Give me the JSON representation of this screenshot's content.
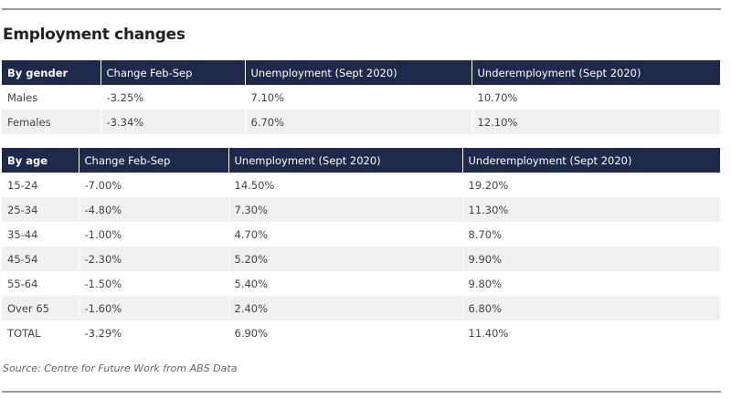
{
  "title": "Employment changes",
  "gender_table": {
    "headers": [
      "By gender",
      "Change Feb-Sep",
      "Unemployment (Sept 2020)",
      "Underemployment (Sept 2020)"
    ],
    "rows": [
      [
        "Males",
        "-3.25%",
        "7.10%",
        "10.70%"
      ],
      [
        "Females",
        "-3.34%",
        "6.70%",
        "12.10%"
      ]
    ]
  },
  "age_table": {
    "headers": [
      "By age",
      "Change Feb-Sep",
      "Unemployment (Sept 2020)",
      "Underemployment (Sept 2020)"
    ],
    "rows": [
      [
        "15-24",
        "-7.00%",
        "14.50%",
        "19.20%"
      ],
      [
        "25-34",
        "-4.80%",
        "7.30%",
        "11.30%"
      ],
      [
        "35-44",
        "-1.00%",
        "4.70%",
        "8.70%"
      ],
      [
        "45-54",
        "-2.30%",
        "5.20%",
        "9.90%"
      ],
      [
        "55-64",
        "-1.50%",
        "5.40%",
        "9.80%"
      ],
      [
        "Over 65",
        "-1.60%",
        "2.40%",
        "6.80%"
      ],
      [
        "TOTAL",
        "-3.29%",
        "6.90%",
        "11.40%"
      ]
    ]
  },
  "source": "Source: Centre for Future Work from ABS Data",
  "colors": {
    "header_bg": "#1d2a4a",
    "header_text": "#ffffff",
    "stripe": "#f0f0f0"
  }
}
